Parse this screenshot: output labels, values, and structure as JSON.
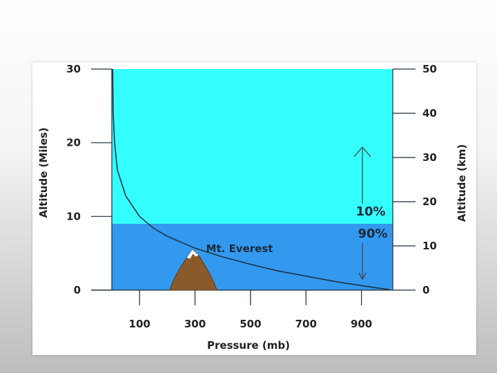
{
  "chart_data": {
    "type": "line",
    "title": "",
    "xlabel": "Pressure (mb)",
    "ylabel_left": "Altitude (Miles)",
    "ylabel_right": "Altitude (km)",
    "x_ticks": [
      100,
      300,
      500,
      700,
      900
    ],
    "y_left_ticks": [
      0,
      10,
      20,
      30
    ],
    "y_right_ticks": [
      0,
      10,
      20,
      30,
      40,
      50
    ],
    "y_left_lim": [
      0,
      30
    ],
    "y_right_lim": [
      0,
      50
    ],
    "x_lim": [
      0,
      1013
    ],
    "series": [
      {
        "x": [
          3,
          5,
          10,
          20,
          50,
          100,
          150,
          200,
          250,
          300,
          400,
          500,
          600,
          700,
          800,
          900,
          1000
        ],
        "y": [
          30,
          24,
          20,
          16.3,
          12.8,
          10,
          8.4,
          7.3,
          6.5,
          5.7,
          4.5,
          3.5,
          2.6,
          1.9,
          1.2,
          0.6,
          0.07
        ]
      }
    ],
    "regions": {
      "upper_color": "#33FFFF",
      "lower_color": "#3399EE",
      "boundary_miles": 9
    },
    "annotations": {
      "upper_percent": "10%",
      "lower_percent": "90%",
      "mountain_label": "Mt. Everest",
      "mountain_pressure_mb": 300,
      "mountain_altitude_miles": 5.5
    }
  }
}
